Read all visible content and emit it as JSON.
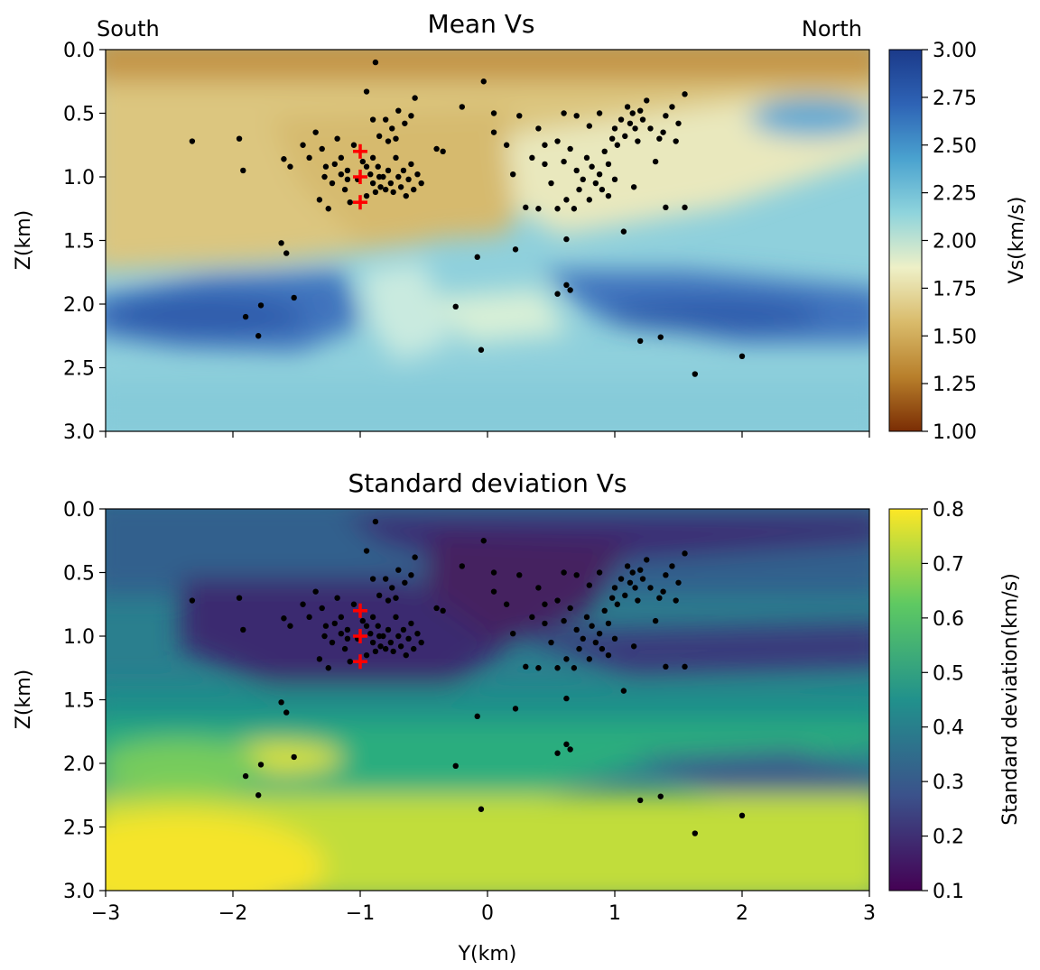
{
  "chart_data": [
    {
      "type": "heatmap",
      "title": "Mean Vs",
      "corner_labels": {
        "left": "South",
        "right": "North"
      },
      "xlabel": "",
      "ylabel": "Z(km)",
      "xlim": [
        -3,
        3
      ],
      "ylim": [
        3.0,
        0.0
      ],
      "y_inverted": true,
      "xticks": [
        -3,
        -2,
        -1,
        0,
        1,
        2,
        3
      ],
      "xtick_labels_shown": false,
      "yticks": [
        "0.0",
        "0.5",
        "1.0",
        "1.5",
        "2.0",
        "2.5",
        "3.0"
      ],
      "colorbar": {
        "label": "Vs(km/s)",
        "range": [
          1.0,
          3.0
        ],
        "ticks": [
          "1.00",
          "1.25",
          "1.50",
          "1.75",
          "2.00",
          "2.25",
          "2.50",
          "2.75",
          "3.00"
        ],
        "colormap": [
          "#7a2d04",
          "#b87f2b",
          "#d9bb6b",
          "#eef0c7",
          "#8fd4dc",
          "#4aa2cf",
          "#2e63b5",
          "#1b3a8a"
        ]
      }
    },
    {
      "type": "heatmap",
      "title": "Standard deviation Vs",
      "xlabel": "Y(km)",
      "ylabel": "Z(km)",
      "xlim": [
        -3,
        3
      ],
      "ylim": [
        3.0,
        0.0
      ],
      "y_inverted": true,
      "xticks": [
        "−3",
        "−2",
        "−1",
        "0",
        "1",
        "2",
        "3"
      ],
      "yticks": [
        "0.0",
        "0.5",
        "1.0",
        "1.5",
        "2.0",
        "2.5",
        "3.0"
      ],
      "colorbar": {
        "label": "Standard deviation(km/s)",
        "range": [
          0.1,
          0.8
        ],
        "ticks": [
          "0.1",
          "0.2",
          "0.3",
          "0.4",
          "0.5",
          "0.6",
          "0.7",
          "0.8"
        ],
        "colormap": [
          "#440154",
          "#3b528b",
          "#21918c",
          "#5ec962",
          "#fde725"
        ]
      }
    }
  ],
  "earthquakes": {
    "marker_color": "#000000",
    "points": [
      [
        -0.88,
        0.1
      ],
      [
        -0.03,
        0.25
      ],
      [
        -0.95,
        0.33
      ],
      [
        -0.57,
        0.38
      ],
      [
        -0.2,
        0.45
      ],
      [
        -2.32,
        0.72
      ],
      [
        -1.95,
        0.7
      ],
      [
        -1.92,
        0.95
      ],
      [
        -1.6,
        0.86
      ],
      [
        -1.55,
        0.92
      ],
      [
        -1.45,
        0.75
      ],
      [
        -1.4,
        0.85
      ],
      [
        -1.35,
        0.65
      ],
      [
        -1.3,
        0.78
      ],
      [
        -1.27,
        0.92
      ],
      [
        -1.22,
        1.05
      ],
      [
        -1.18,
        0.7
      ],
      [
        -1.15,
        0.85
      ],
      [
        -1.12,
        1.1
      ],
      [
        -1.1,
        0.95
      ],
      [
        -1.08,
        1.2
      ],
      [
        -1.05,
        0.75
      ],
      [
        -1.02,
        1.02
      ],
      [
        -0.98,
        0.88
      ],
      [
        -0.95,
        1.15
      ],
      [
        -0.92,
        0.98
      ],
      [
        -0.9,
        1.05
      ],
      [
        -0.88,
        1.12
      ],
      [
        -0.86,
        0.92
      ],
      [
        -0.84,
        1.08
      ],
      [
        -0.82,
        1.0
      ],
      [
        -0.8,
        1.1
      ],
      [
        -0.78,
        0.95
      ],
      [
        -0.76,
        1.05
      ],
      [
        -0.74,
        1.12
      ],
      [
        -0.72,
        0.85
      ],
      [
        -0.7,
        1.0
      ],
      [
        -0.68,
        1.08
      ],
      [
        -0.66,
        0.95
      ],
      [
        -0.64,
        1.15
      ],
      [
        -0.62,
        1.02
      ],
      [
        -0.6,
        0.9
      ],
      [
        -0.58,
        1.1
      ],
      [
        -0.55,
        0.98
      ],
      [
        -0.52,
        1.05
      ],
      [
        -0.8,
        0.55
      ],
      [
        -0.75,
        0.62
      ],
      [
        -0.7,
        0.48
      ],
      [
        -0.65,
        0.58
      ],
      [
        -0.6,
        0.52
      ],
      [
        -0.85,
        0.68
      ],
      [
        -0.78,
        0.72
      ],
      [
        -0.72,
        0.7
      ],
      [
        -1.32,
        1.18
      ],
      [
        -1.25,
        1.25
      ],
      [
        -1.28,
        1.0
      ],
      [
        -1.2,
        0.9
      ],
      [
        -1.15,
        0.98
      ],
      [
        -1.1,
        1.02
      ],
      [
        -0.95,
        0.92
      ],
      [
        -0.9,
        0.85
      ],
      [
        -0.85,
        1.0
      ],
      [
        -0.4,
        0.78
      ],
      [
        -0.35,
        0.8
      ],
      [
        -0.9,
        0.55
      ],
      [
        -1.62,
        1.52
      ],
      [
        -1.58,
        1.6
      ],
      [
        -1.78,
        2.01
      ],
      [
        -1.52,
        1.95
      ],
      [
        -1.8,
        2.25
      ],
      [
        -1.9,
        2.1
      ],
      [
        -0.25,
        2.02
      ],
      [
        -0.05,
        2.36
      ],
      [
        -0.08,
        1.63
      ],
      [
        0.22,
        1.57
      ],
      [
        0.62,
        1.49
      ],
      [
        0.55,
        1.92
      ],
      [
        0.62,
        1.85
      ],
      [
        0.65,
        1.89
      ],
      [
        1.07,
        1.43
      ],
      [
        1.2,
        2.29
      ],
      [
        1.36,
        2.26
      ],
      [
        1.63,
        2.55
      ],
      [
        2.0,
        2.41
      ],
      [
        0.05,
        0.5
      ],
      [
        0.25,
        0.52
      ],
      [
        0.05,
        0.65
      ],
      [
        0.15,
        0.75
      ],
      [
        0.4,
        0.62
      ],
      [
        0.55,
        0.72
      ],
      [
        0.6,
        0.88
      ],
      [
        0.65,
        0.78
      ],
      [
        0.7,
        0.95
      ],
      [
        0.75,
        1.02
      ],
      [
        0.78,
        0.85
      ],
      [
        0.82,
        0.92
      ],
      [
        0.85,
        1.05
      ],
      [
        0.88,
        0.98
      ],
      [
        0.9,
        1.1
      ],
      [
        0.92,
        0.8
      ],
      [
        0.95,
        0.9
      ],
      [
        0.98,
        0.7
      ],
      [
        1.0,
        0.62
      ],
      [
        1.02,
        0.75
      ],
      [
        1.05,
        0.55
      ],
      [
        1.08,
        0.68
      ],
      [
        1.1,
        0.45
      ],
      [
        1.12,
        0.58
      ],
      [
        1.14,
        0.5
      ],
      [
        1.16,
        0.62
      ],
      [
        1.18,
        0.72
      ],
      [
        1.2,
        0.48
      ],
      [
        1.22,
        0.55
      ],
      [
        1.25,
        0.4
      ],
      [
        1.28,
        0.62
      ],
      [
        1.35,
        0.7
      ],
      [
        1.4,
        0.52
      ],
      [
        1.45,
        0.45
      ],
      [
        1.5,
        0.58
      ],
      [
        1.55,
        0.35
      ],
      [
        0.45,
        0.9
      ],
      [
        0.5,
        1.05
      ],
      [
        0.55,
        1.25
      ],
      [
        0.62,
        1.18
      ],
      [
        0.68,
        1.25
      ],
      [
        0.72,
        1.1
      ],
      [
        0.8,
        1.18
      ],
      [
        0.88,
        0.5
      ],
      [
        0.95,
        1.15
      ],
      [
        1.0,
        1.02
      ],
      [
        1.15,
        1.08
      ],
      [
        1.4,
        1.24
      ],
      [
        1.55,
        1.24
      ],
      [
        0.3,
        1.24
      ],
      [
        0.4,
        1.25
      ],
      [
        0.2,
        0.98
      ],
      [
        0.35,
        0.85
      ],
      [
        0.45,
        0.75
      ],
      [
        0.6,
        0.5
      ],
      [
        0.7,
        0.52
      ],
      [
        0.8,
        0.6
      ],
      [
        1.32,
        0.88
      ],
      [
        1.38,
        0.65
      ],
      [
        1.48,
        0.72
      ]
    ]
  },
  "stations": {
    "marker_color": "#ff0000",
    "points": [
      [
        -1.0,
        0.8
      ],
      [
        -1.0,
        1.0
      ],
      [
        -1.0,
        1.2
      ]
    ]
  }
}
